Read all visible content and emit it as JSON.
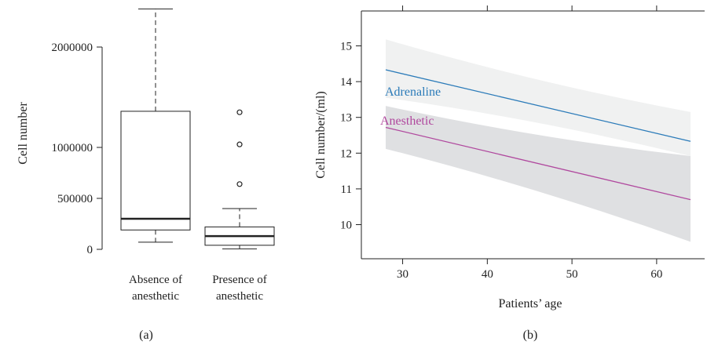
{
  "chart_data": [
    {
      "type": "box",
      "panel_label": "(a)",
      "ylabel": "Cell number",
      "yticks": [
        "0",
        "500000",
        "1000000",
        "2000000"
      ],
      "ytick_values": [
        0,
        500000,
        1000000,
        2000000
      ],
      "categories": [
        [
          "Absence of",
          "anesthetic"
        ],
        [
          "Presence of",
          "anesthetic"
        ]
      ],
      "boxes": [
        {
          "whisker_low": 70000,
          "q1": 190000,
          "median": 300000,
          "q3": 1360000,
          "whisker_high": 2380000,
          "outliers": []
        },
        {
          "whisker_low": 5000,
          "q1": 40000,
          "median": 130000,
          "q3": 220000,
          "whisker_high": 400000,
          "outliers": [
            640000,
            1030000,
            1350000
          ]
        }
      ],
      "colors": {
        "box": "#222222",
        "outlier": "#222222"
      }
    },
    {
      "type": "line",
      "panel_label": "(b)",
      "xlabel": "Patients’ age",
      "ylabel": "Cell number/(ml)",
      "xlim": [
        25,
        67
      ],
      "ylim": [
        9.3,
        16.0
      ],
      "xticks": [
        30,
        40,
        50,
        60
      ],
      "yticks": [
        10,
        11,
        12,
        13,
        14,
        15
      ],
      "series": [
        {
          "name": "Adrenaline",
          "color": "#2b7bb9",
          "band_color": "#f0f1f1",
          "x": [
            28,
            64
          ],
          "y": [
            14.33,
            12.33
          ],
          "band_upper": [
            15.18,
            13.15
          ],
          "band_lower": [
            13.55,
            11.92
          ]
        },
        {
          "name": "Anesthetic",
          "color": "#b0489e",
          "band_color": "#dfe0e2",
          "x": [
            28,
            64
          ],
          "y": [
            12.72,
            10.7
          ],
          "band_upper": [
            13.32,
            11.92
          ],
          "band_lower": [
            12.12,
            9.52
          ]
        }
      ]
    }
  ]
}
